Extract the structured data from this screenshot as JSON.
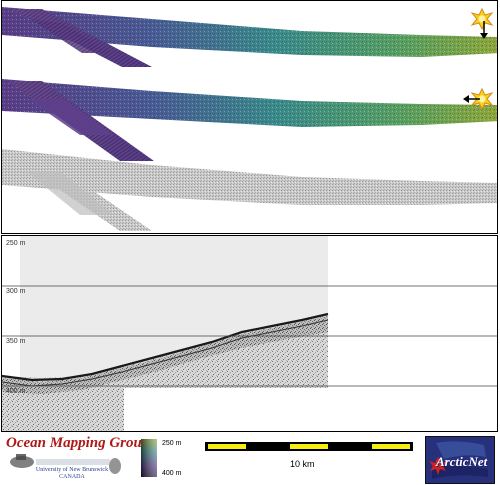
{
  "profile": {
    "depth_labels": [
      "250 m",
      "300 m",
      "350 m",
      "400 m"
    ]
  },
  "legend": {
    "top": "250 m",
    "bottom": "400 m"
  },
  "scale_bar": {
    "label": "10 km"
  },
  "logos": {
    "ocean_mapping_group": "Ocean Mapping Group",
    "unb_line1": "University of New Brunswick",
    "unb_line2": "CANADA",
    "arcticnet": "ArcticNet"
  },
  "icons": [
    "sun-illumination-icon",
    "sun-illumination-icon"
  ],
  "colors": {
    "ramp_start": "#5c3d86",
    "ramp_mid": "#3a8a8a",
    "ramp_end": "#8aa43a",
    "scale_yellow": "#f5ee10",
    "ocean_red": "#b01818",
    "arctic_blue": "#27307a"
  }
}
